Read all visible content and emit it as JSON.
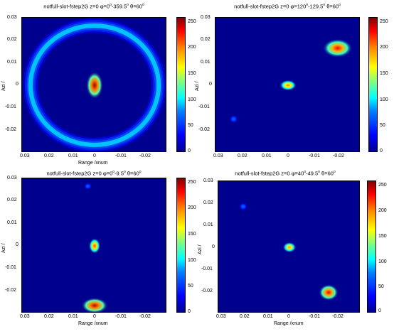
{
  "chart_data": [
    {
      "type": "heatmap",
      "title": "notfull-slot-fstep2G  z=0  φ=0°-359.5°  θ=60°",
      "title_prefix": "notfull-slot-fstep2G  z=0  φ=0",
      "title_sup1": "o",
      "title_mid": "-359.5",
      "title_sup2": "o",
      "title_suffix": "  θ=60",
      "title_sup3": "o",
      "xlabel": "Range /xnum",
      "ylabel": "Azi /",
      "xlim": [
        0.03,
        -0.03
      ],
      "ylim": [
        -0.03,
        0.03
      ],
      "xticks": [
        "0.03",
        "0.02",
        "0.01",
        "0",
        "-0.01",
        "-0.02"
      ],
      "yticks": [
        "0.03",
        "0.02",
        "0.01",
        "0",
        "-0.01",
        "-0.02"
      ],
      "colorbar_ticks": [
        "250",
        "200",
        "150",
        "100",
        "50",
        "0"
      ],
      "clim": [
        0,
        255
      ],
      "features": [
        {
          "kind": "ring",
          "x": 0,
          "y": 0,
          "r": 0.0265,
          "width": 0.0018,
          "value": 90
        },
        {
          "kind": "blob",
          "x": 0,
          "y": 0,
          "sx": 0.0016,
          "sy": 0.0028,
          "value": 250
        }
      ]
    },
    {
      "type": "heatmap",
      "title": "notfull-slot-fstep2G  z=0  φ=120°-129.5°  θ=60°",
      "title_prefix": "notfull-slot-fstep2G  z=0  φ=120",
      "title_sup1": "o",
      "title_mid": "-129.5",
      "title_sup2": "o",
      "title_suffix": "  θ=60",
      "title_sup3": "o",
      "xlabel": "",
      "ylabel": "Azi /",
      "xlim": [
        0.03,
        -0.03
      ],
      "ylim": [
        -0.03,
        0.03
      ],
      "xticks": [
        "0.03",
        "0.02",
        "0.01",
        "0",
        "-0.01",
        "-0.02"
      ],
      "yticks": [
        "0.03",
        "0.02",
        "0.01",
        "0",
        "-0.01",
        "-0.02"
      ],
      "colorbar_ticks": [
        "250",
        "200",
        "150",
        "100",
        "50",
        "0"
      ],
      "clim": [
        0,
        255
      ],
      "features": [
        {
          "kind": "blob",
          "x": -0.0205,
          "y": 0.0165,
          "sx": 0.0028,
          "sy": 0.0019,
          "value": 230
        },
        {
          "kind": "blob",
          "x": 0,
          "y": 0,
          "sx": 0.0016,
          "sy": 0.0011,
          "value": 200
        },
        {
          "kind": "blob",
          "x": 0.0225,
          "y": -0.015,
          "sx": 0.0008,
          "sy": 0.0008,
          "value": 70
        }
      ]
    },
    {
      "type": "heatmap",
      "title": "notfull-slot-fstep2G  z=0  φ=0°-9.5°  θ=60°",
      "title_prefix": "notfull-slot-fstep2G  z=0  φ=0",
      "title_sup1": "o",
      "title_mid": "-9.5",
      "title_sup2": "o",
      "title_suffix": "  θ=60",
      "title_sup3": "o",
      "xlabel": "Range /xnum",
      "ylabel": "Azi /",
      "xlim": [
        0.03,
        -0.03
      ],
      "ylim": [
        -0.03,
        0.03
      ],
      "xticks": [
        "0.03",
        "0.02",
        "0.01",
        "0",
        "-0.01",
        "-0.02"
      ],
      "yticks": [
        "0.03",
        "0.02",
        "0.01",
        "0",
        "-0.01",
        "-0.02"
      ],
      "colorbar_ticks": [
        "250",
        "200",
        "150",
        "100",
        "50",
        "0"
      ],
      "clim": [
        0,
        255
      ],
      "features": [
        {
          "kind": "blob",
          "x": 0,
          "y": -0.0265,
          "sx": 0.0025,
          "sy": 0.0016,
          "value": 245
        },
        {
          "kind": "blob",
          "x": 0,
          "y": 0,
          "sx": 0.0011,
          "sy": 0.0016,
          "value": 210
        },
        {
          "kind": "blob",
          "x": 0.0028,
          "y": 0.0265,
          "sx": 0.0007,
          "sy": 0.0007,
          "value": 70
        }
      ]
    },
    {
      "type": "heatmap",
      "title": "notfull-slot-fstep2G  z=0  φ=40°-49.5°  θ=60°",
      "title_prefix": "notfull-slot-fstep2G  z=0  φ=40",
      "title_sup1": "o",
      "title_mid": "-49.5",
      "title_sup2": "o",
      "title_suffix": "  θ=60",
      "title_sup3": "o",
      "xlabel": "Range /xnum",
      "ylabel": "Azi /",
      "xlim": [
        0.03,
        -0.03
      ],
      "ylim": [
        -0.03,
        0.03
      ],
      "xticks": [
        "0.03",
        "0.02",
        "0.01",
        "0",
        "-0.01",
        "-0.02"
      ],
      "yticks": [
        "0.03",
        "0.02",
        "0.01",
        "0",
        "-0.01",
        "-0.02"
      ],
      "colorbar_ticks": [
        "250",
        "200",
        "150",
        "100",
        "50",
        "0"
      ],
      "clim": [
        0,
        255
      ],
      "features": [
        {
          "kind": "blob",
          "x": -0.0165,
          "y": -0.0205,
          "sx": 0.0019,
          "sy": 0.0017,
          "value": 235
        },
        {
          "kind": "blob",
          "x": 0,
          "y": 0,
          "sx": 0.0013,
          "sy": 0.0011,
          "value": 190
        },
        {
          "kind": "blob",
          "x": 0.0195,
          "y": 0.0185,
          "sx": 0.0008,
          "sy": 0.0008,
          "value": 70
        }
      ]
    }
  ]
}
